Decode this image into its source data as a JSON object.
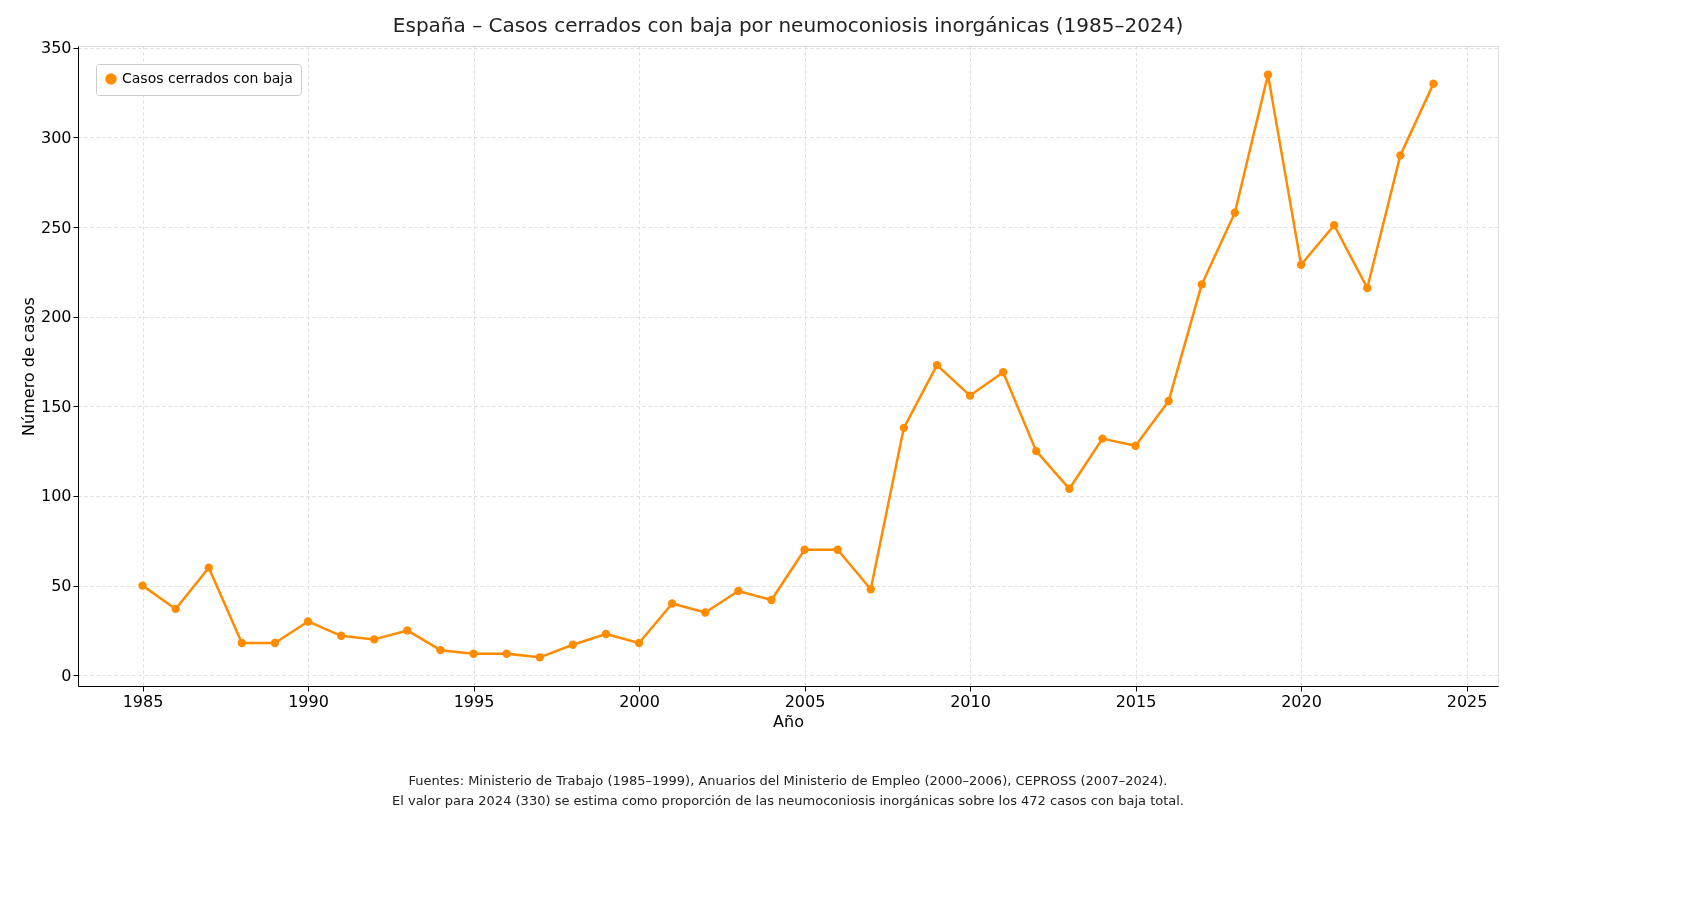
{
  "chart_data": {
    "type": "line",
    "title": "España – Casos cerrados con baja por neumoconiosis inorgánicas (1985–2024)",
    "xlabel": "Año",
    "ylabel": "Número de casos",
    "x": [
      1985,
      1986,
      1987,
      1988,
      1989,
      1990,
      1991,
      1992,
      1993,
      1994,
      1995,
      1996,
      1997,
      1998,
      1999,
      2000,
      2001,
      2002,
      2003,
      2004,
      2005,
      2006,
      2007,
      2008,
      2009,
      2010,
      2011,
      2012,
      2013,
      2014,
      2015,
      2016,
      2017,
      2018,
      2019,
      2020,
      2021,
      2022,
      2023,
      2024
    ],
    "series": [
      {
        "name": "Casos cerrados con baja",
        "color": "#ff8c00",
        "values": [
          50,
          37,
          60,
          18,
          18,
          30,
          22,
          20,
          25,
          14,
          12,
          12,
          10,
          17,
          23,
          18,
          40,
          35,
          47,
          42,
          70,
          70,
          48,
          138,
          173,
          156,
          169,
          125,
          104,
          132,
          128,
          153,
          218,
          258,
          335,
          229,
          251,
          216,
          290,
          330
        ]
      }
    ],
    "xlim": [
      1983.05,
      2025.95
    ],
    "xticks": [
      1985,
      1990,
      1995,
      2000,
      2005,
      2010,
      2015,
      2020,
      2025
    ],
    "ylim": [
      -6,
      351
    ],
    "yticks": [
      0,
      50,
      100,
      150,
      200,
      250,
      300,
      350
    ],
    "grid": true,
    "legend": "top left",
    "marker": "circle",
    "line_style": "solid",
    "annotations": [
      "Fuentes: Ministerio de Trabajo (1985–1999), Anuarios del Ministerio de Empleo (2000–2006), CEPROSS (2007–2024).",
      "El valor para 2024 (330) se estima como proporción de las neumoconiosis inorgánicas sobre los 472 casos con baja total."
    ]
  }
}
